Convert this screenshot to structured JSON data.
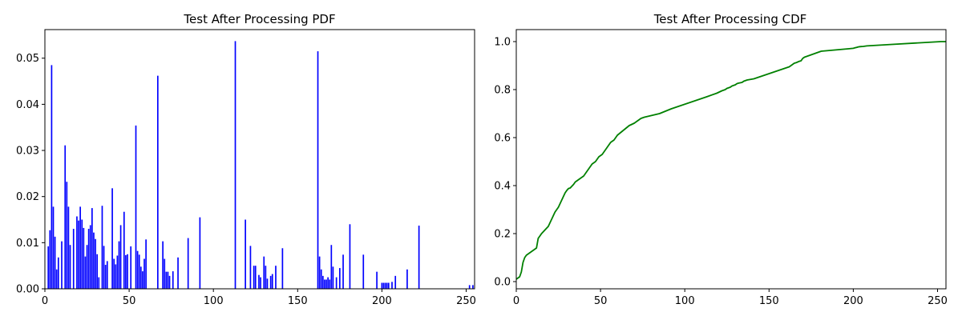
{
  "chart_data": [
    {
      "type": "bar",
      "title": "Test After Processing PDF",
      "xlabel": "",
      "ylabel": "",
      "xlim": [
        0,
        255
      ],
      "ylim": [
        0,
        0.0562
      ],
      "xticks": [
        0,
        50,
        100,
        150,
        200,
        250
      ],
      "yticks": [
        0.0,
        0.01,
        0.02,
        0.03,
        0.04,
        0.05
      ],
      "ytick_labels": [
        "0.00",
        "0.01",
        "0.02",
        "0.03",
        "0.04",
        "0.05"
      ],
      "grid": false,
      "bar_color": "#0000ff",
      "x": [
        2,
        3,
        4,
        5,
        6,
        7,
        8,
        10,
        12,
        13,
        14,
        15,
        17,
        19,
        20,
        21,
        22,
        23,
        24,
        25,
        26,
        27,
        28,
        29,
        30,
        31,
        32,
        34,
        35,
        36,
        37,
        40,
        41,
        42,
        43,
        44,
        45,
        47,
        48,
        49,
        51,
        54,
        55,
        56,
        57,
        58,
        59,
        60,
        67,
        70,
        71,
        72,
        73,
        74,
        76,
        79,
        85,
        92,
        113,
        119,
        122,
        124,
        125,
        127,
        128,
        130,
        131,
        132,
        134,
        135,
        137,
        141,
        162,
        163,
        164,
        165,
        166,
        167,
        168,
        169,
        170,
        171,
        173,
        175,
        177,
        181,
        189,
        197,
        200,
        201,
        202,
        203,
        204,
        206,
        208,
        215,
        222,
        252,
        254
      ],
      "values": [
        0.0092,
        0.0127,
        0.0485,
        0.0178,
        0.0113,
        0.0042,
        0.0068,
        0.0103,
        0.0311,
        0.0232,
        0.0178,
        0.0095,
        0.013,
        0.0157,
        0.0148,
        0.0178,
        0.015,
        0.0132,
        0.007,
        0.0095,
        0.013,
        0.0138,
        0.0175,
        0.0122,
        0.0108,
        0.0075,
        0.0025,
        0.018,
        0.0093,
        0.0052,
        0.006,
        0.0218,
        0.0065,
        0.0053,
        0.0072,
        0.0103,
        0.0138,
        0.0167,
        0.0073,
        0.0075,
        0.0092,
        0.0354,
        0.0082,
        0.0074,
        0.0048,
        0.0038,
        0.0065,
        0.0107,
        0.0462,
        0.0103,
        0.0065,
        0.0037,
        0.0037,
        0.0028,
        0.0038,
        0.0068,
        0.011,
        0.0155,
        0.0537,
        0.015,
        0.0093,
        0.005,
        0.005,
        0.003,
        0.0025,
        0.007,
        0.005,
        0.0022,
        0.0028,
        0.0032,
        0.005,
        0.0088,
        0.0515,
        0.007,
        0.0042,
        0.0028,
        0.002,
        0.002,
        0.0025,
        0.002,
        0.0095,
        0.0048,
        0.0025,
        0.0045,
        0.0074,
        0.014,
        0.0074,
        0.0037,
        0.0013,
        0.0013,
        0.0013,
        0.0013,
        0.0013,
        0.0015,
        0.0028,
        0.0042,
        0.0137,
        0.0008,
        0.0008
      ]
    },
    {
      "type": "line",
      "title": "Test After Processing CDF",
      "xlabel": "",
      "ylabel": "",
      "xlim": [
        0,
        255
      ],
      "ylim": [
        -0.03,
        1.05
      ],
      "xticks": [
        0,
        50,
        100,
        150,
        200,
        250
      ],
      "yticks": [
        0.0,
        0.2,
        0.4,
        0.6,
        0.8,
        1.0
      ],
      "ytick_labels": [
        "0.0",
        "0.2",
        "0.4",
        "0.6",
        "0.8",
        "1.0"
      ],
      "grid": false,
      "line_color": "#008000",
      "x": [
        0,
        2,
        3,
        4,
        5,
        6,
        7,
        8,
        10,
        12,
        13,
        14,
        15,
        17,
        19,
        20,
        21,
        22,
        23,
        24,
        25,
        26,
        27,
        28,
        29,
        30,
        31,
        32,
        34,
        35,
        36,
        37,
        40,
        41,
        42,
        43,
        44,
        45,
        47,
        48,
        49,
        51,
        54,
        55,
        56,
        57,
        58,
        59,
        60,
        67,
        70,
        71,
        72,
        73,
        74,
        76,
        79,
        85,
        92,
        113,
        119,
        122,
        124,
        125,
        127,
        128,
        130,
        131,
        132,
        134,
        135,
        137,
        141,
        162,
        163,
        164,
        165,
        166,
        167,
        168,
        169,
        170,
        171,
        173,
        175,
        177,
        181,
        189,
        197,
        200,
        201,
        202,
        203,
        204,
        206,
        208,
        215,
        222,
        252,
        254,
        255
      ],
      "values": [
        0.01,
        0.02,
        0.04,
        0.08,
        0.1,
        0.11,
        0.115,
        0.12,
        0.13,
        0.14,
        0.18,
        0.19,
        0.2,
        0.215,
        0.23,
        0.245,
        0.26,
        0.275,
        0.29,
        0.3,
        0.31,
        0.325,
        0.34,
        0.355,
        0.37,
        0.38,
        0.388,
        0.39,
        0.405,
        0.415,
        0.42,
        0.425,
        0.44,
        0.45,
        0.46,
        0.47,
        0.48,
        0.49,
        0.5,
        0.51,
        0.52,
        0.53,
        0.56,
        0.57,
        0.58,
        0.585,
        0.59,
        0.6,
        0.61,
        0.65,
        0.66,
        0.665,
        0.67,
        0.675,
        0.68,
        0.685,
        0.69,
        0.7,
        0.72,
        0.77,
        0.785,
        0.795,
        0.8,
        0.805,
        0.81,
        0.815,
        0.82,
        0.825,
        0.827,
        0.83,
        0.835,
        0.84,
        0.845,
        0.895,
        0.9,
        0.905,
        0.91,
        0.912,
        0.915,
        0.918,
        0.92,
        0.93,
        0.935,
        0.94,
        0.945,
        0.95,
        0.96,
        0.965,
        0.97,
        0.972,
        0.974,
        0.976,
        0.978,
        0.979,
        0.98,
        0.982,
        0.985,
        0.988,
        1.0,
        1.0,
        1.0
      ]
    }
  ]
}
